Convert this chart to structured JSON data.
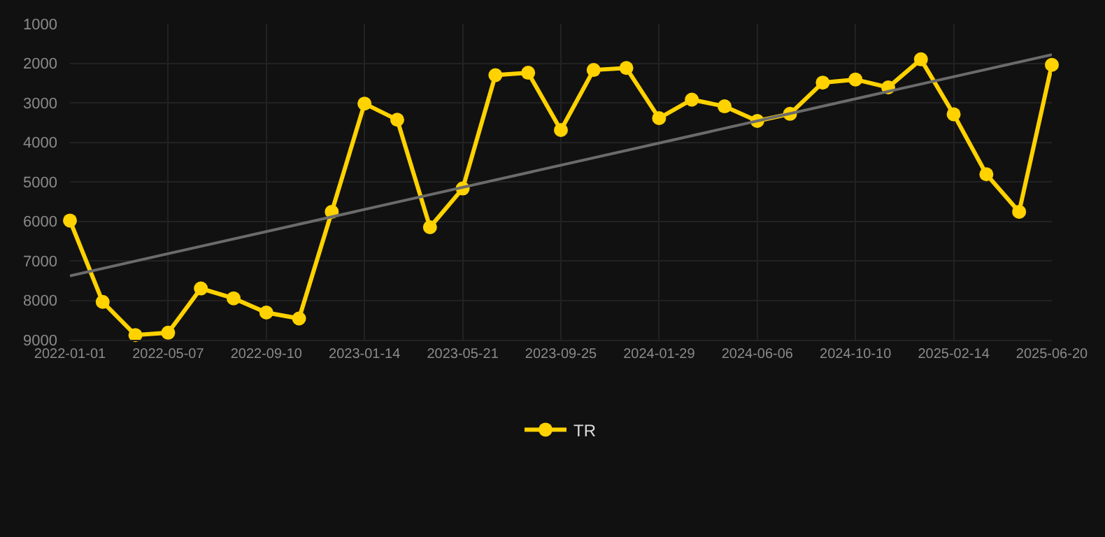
{
  "chart_data": {
    "type": "line",
    "categories": [
      "2022-01-01",
      null,
      null,
      "2022-05-07",
      null,
      null,
      "2022-09-10",
      null,
      null,
      "2023-01-14",
      null,
      null,
      "2023-05-21",
      null,
      null,
      "2023-09-25",
      null,
      null,
      "2024-01-29",
      null,
      null,
      "2024-06-06",
      null,
      null,
      "2024-10-10",
      null,
      null,
      "2025-02-14",
      null,
      null,
      "2025-06-20"
    ],
    "series": [
      {
        "name": "TR",
        "color": "#ffd200",
        "values": [
          5980,
          8040,
          8880,
          8820,
          7700,
          7950,
          8310,
          8460,
          5760,
          3020,
          3430,
          6150,
          5170,
          2300,
          2240,
          3690,
          2170,
          2120,
          3390,
          2920,
          3090,
          3460,
          3280,
          2490,
          2410,
          2610,
          1900,
          3290,
          4810,
          5760,
          2040
        ]
      },
      {
        "type": "line",
        "color": "#6b6b6b",
        "values": [
          7380,
          null,
          null,
          null,
          null,
          null,
          null,
          null,
          null,
          null,
          null,
          null,
          null,
          null,
          null,
          null,
          null,
          null,
          null,
          null,
          null,
          null,
          null,
          null,
          null,
          null,
          null,
          null,
          null,
          null,
          1780
        ],
        "marker": "none"
      }
    ],
    "ylim": [
      9000,
      1000
    ],
    "yticks": [
      1000,
      2000,
      3000,
      4000,
      5000,
      6000,
      7000,
      8000,
      9000
    ],
    "grid": true,
    "legend": "bottom",
    "marker": "circle",
    "line_style": "solid"
  }
}
